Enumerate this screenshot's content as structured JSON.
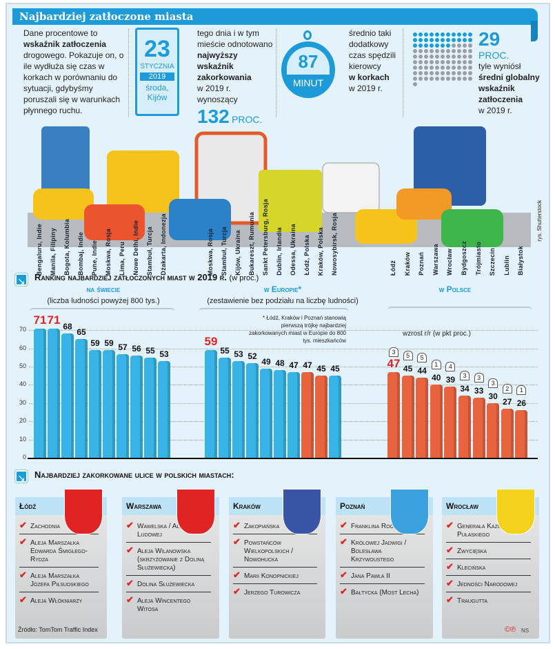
{
  "header": {
    "title": "Najbardziej zatłoczone miasta"
  },
  "intro": {
    "line1": "Dane procentowe to",
    "bold": "wskaźnik zatłoczenia",
    "rest": "drogowego. Pokazuje on, o ile wydłuża się czas w korkach w porównaniu do sytuacji, gdybyśmy poruszali się w warunkach płynnego ruchu."
  },
  "calendar": {
    "day": "23",
    "month": "STYCZNIA",
    "year": "2019",
    "weekday": "środa,",
    "city": "Kijów"
  },
  "record": {
    "pre": "tego dnia i w tym mieście odnotowano",
    "bold": "najwyższy wskaźnik zakorkowania",
    "post": "w 2019 r. wynoszący",
    "value": "132",
    "unit": "PROC."
  },
  "stopwatch": {
    "value": "87",
    "unit": "MINUT"
  },
  "extra_time": {
    "pre": "średnio taki dodatkowy czas spędzili kierowcy",
    "bold": "w korkach",
    "post": "w 2019 r."
  },
  "global": {
    "value": "29",
    "unit": "PROC.",
    "pre": "tyle wyniósł",
    "bold": "średni globalny wskaźnik zatłoczenia",
    "post": "w 2019 r.",
    "dots_filled_fraction": 0.29
  },
  "illustration_credit": "rys. Shutterstock",
  "ranking_title": "Ranking najbardziej zatłoczonych miast w 2019 r.",
  "ranking_unit": "(w proc.)",
  "colors": {
    "accent": "#1d9ad8",
    "bar_blue": "#38b3e6",
    "bar_red": "#e8643f",
    "highlight": "#e02424"
  },
  "chart_data": [
    {
      "type": "bar",
      "title": "na świecie",
      "subtitle": "(liczba ludności powyżej 800 tys.)",
      "ylim": [
        0,
        70
      ],
      "yticks": [
        0,
        10,
        20,
        30,
        40,
        50,
        60,
        70
      ],
      "grid": true,
      "categories": [
        "Bengaluru, Indie",
        "Manila, Filipiny",
        "Bogota, Kolumbia",
        "Bombaj, Indie",
        "Pune, Indie",
        "Moskwa, Rosja",
        "Lima, Peru",
        "Nowe Delhi, Indie",
        "Stambuł, Turcja",
        "Dżakarta, Indonezja"
      ],
      "values": [
        71,
        71,
        68,
        65,
        59,
        59,
        57,
        56,
        55,
        53
      ],
      "highlighted": [
        true,
        true,
        false,
        false,
        false,
        false,
        false,
        false,
        false,
        false
      ],
      "polish": [
        false,
        false,
        false,
        false,
        false,
        false,
        false,
        false,
        false,
        false
      ]
    },
    {
      "type": "bar",
      "title": "w Europie*",
      "subtitle": "(zestawienie bez podziału na liczbę ludności)",
      "note": "* Łódź, Kraków i Poznań stanowią pierwszą trójkę najbardziej zakorkowanych miast w Europie do 800 tys. mieszkańców",
      "categories": [
        "Moskwa, Rosja",
        "Stambuł, Turcja",
        "Kijów, Ukraina",
        "Bukareszt, Rumunia",
        "Sankt Petersburg, Rosja",
        "Dublin, Irlandia",
        "Odessa, Ukraina",
        "Łódź, Polska",
        "Kraków, Polska",
        "Nowosybirsk, Rosja"
      ],
      "values": [
        59,
        55,
        53,
        52,
        49,
        48,
        47,
        47,
        45,
        45
      ],
      "highlighted": [
        true,
        false,
        false,
        false,
        false,
        false,
        false,
        false,
        false,
        false
      ],
      "polish": [
        false,
        false,
        false,
        false,
        false,
        false,
        false,
        true,
        true,
        false
      ]
    },
    {
      "type": "bar",
      "title": "w Polsce",
      "increase_label": "wzrost r/r (w pkt proc.)",
      "categories": [
        "Łódź",
        "Kraków",
        "Poznań",
        "Warszawa",
        "Wrocław",
        "Bydgoszcz",
        "Trójmiasto",
        "Szczecin",
        "Lublin",
        "Białystok"
      ],
      "values": [
        47,
        45,
        44,
        40,
        39,
        34,
        33,
        30,
        27,
        26
      ],
      "increase": [
        3,
        5,
        5,
        1,
        4,
        3,
        3,
        3,
        2,
        1
      ],
      "highlighted": [
        true,
        false,
        false,
        false,
        false,
        false,
        false,
        false,
        false,
        false
      ],
      "polish": [
        true,
        true,
        true,
        true,
        true,
        true,
        true,
        true,
        true,
        true
      ]
    }
  ],
  "streets": {
    "title": "Najbardziej zakorkowane ulice w polskich miastach:",
    "cities": [
      {
        "name": "Łódź",
        "streets": [
          "Zachodnia",
          "Aleja Marszałka Edwarda Śmigłego-Rydza",
          "Aleja Marszałka Józefa Piłsudskiego",
          "Aleja Włókniarzy"
        ]
      },
      {
        "name": "Warszawa",
        "streets": [
          "Wawelska / Aleja Armii Ludowej",
          "Aleja Wilanowska (skrzyżowanie z Doliną Służewiecką)",
          "Dolina Służewiecka",
          "Aleja Wincentego Witosa"
        ]
      },
      {
        "name": "Kraków",
        "streets": [
          "Zakopiańska",
          "Powstańców Wielkopolskich / Nowohucka",
          "Marii Konopnickiej",
          "Jerzego Turowicza"
        ]
      },
      {
        "name": "Poznań",
        "streets": [
          "Franklina Roosevelta",
          "Królowej Jadwigi / Bolesława Krzywoustego",
          "Jana Pawła II",
          "Bałtycka (Most Lecha)"
        ]
      },
      {
        "name": "Wrocław",
        "streets": [
          "Generała Kazimierza Pułaskiego",
          "Zwycięska",
          "Klecińska",
          "Jedności Narodowej",
          "Traugutta"
        ]
      }
    ]
  },
  "source": "Źródło: TomTom Traffic Index",
  "copyright": "NS"
}
